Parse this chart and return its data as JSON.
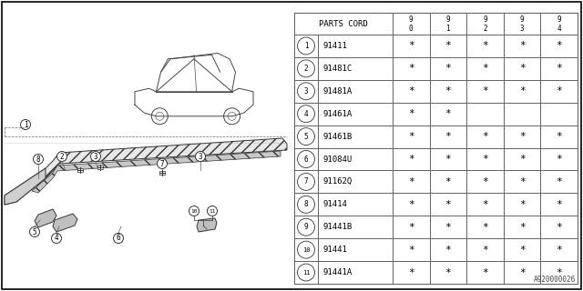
{
  "background_color": "#ffffff",
  "parts_cord_header": "PARTS CORD",
  "year_headers": [
    "9\n0",
    "9\n1",
    "9\n2",
    "9\n3",
    "9\n4"
  ],
  "parts": [
    {
      "num": 1,
      "code": "91411",
      "stars": [
        true,
        true,
        true,
        true,
        true
      ]
    },
    {
      "num": 2,
      "code": "91481C",
      "stars": [
        true,
        true,
        true,
        true,
        true
      ]
    },
    {
      "num": 3,
      "code": "91481A",
      "stars": [
        true,
        true,
        true,
        true,
        true
      ]
    },
    {
      "num": 4,
      "code": "91461A",
      "stars": [
        true,
        true,
        false,
        false,
        false
      ]
    },
    {
      "num": 5,
      "code": "91461B",
      "stars": [
        true,
        true,
        true,
        true,
        true
      ]
    },
    {
      "num": 6,
      "code": "91084U",
      "stars": [
        true,
        true,
        true,
        true,
        true
      ]
    },
    {
      "num": 7,
      "code": "91162Q",
      "stars": [
        true,
        true,
        true,
        true,
        true
      ]
    },
    {
      "num": 8,
      "code": "91414",
      "stars": [
        true,
        true,
        true,
        true,
        true
      ]
    },
    {
      "num": 9,
      "code": "91441B",
      "stars": [
        true,
        true,
        true,
        true,
        true
      ]
    },
    {
      "num": 10,
      "code": "91441",
      "stars": [
        true,
        true,
        true,
        true,
        true
      ]
    },
    {
      "num": 11,
      "code": "91441A",
      "stars": [
        true,
        true,
        true,
        true,
        true
      ]
    }
  ],
  "watermark": "A920000026"
}
